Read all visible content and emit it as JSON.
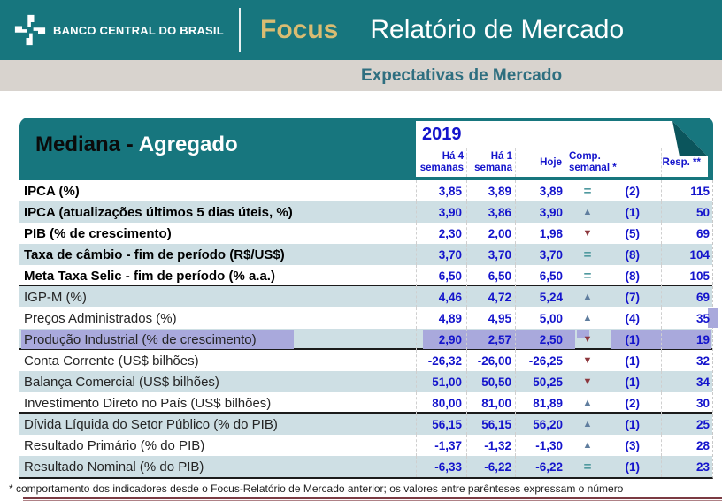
{
  "header": {
    "logo_text": "BANCO CENTRAL DO BRASIL",
    "brand": "Focus",
    "title": "Relatório de Mercado"
  },
  "subtitle": "Expectativas de Mercado",
  "table": {
    "title_black": "Mediana -",
    "title_white": "Agregado",
    "year": "2019",
    "columns": [
      "Há 4 semanas",
      "Há 1 semana",
      "Hoje",
      "Comp. semanal *",
      "Resp. **"
    ],
    "rows": [
      {
        "label": "IPCA (%)",
        "bold": true,
        "values": [
          "3,85",
          "3,89",
          "3,89"
        ],
        "dir": "eq",
        "comp": "(2)",
        "resp": "115"
      },
      {
        "label": "IPCA (atualizações últimos 5 dias úteis, %)",
        "bold": true,
        "values": [
          "3,90",
          "3,86",
          "3,90"
        ],
        "dir": "up",
        "comp": "(1)",
        "resp": "50"
      },
      {
        "label": "PIB (% de crescimento)",
        "bold": true,
        "values": [
          "2,30",
          "2,00",
          "1,98"
        ],
        "dir": "down",
        "comp": "(5)",
        "resp": "69"
      },
      {
        "label": "Taxa de câmbio - fim de período (R$/US$)",
        "bold": true,
        "values": [
          "3,70",
          "3,70",
          "3,70"
        ],
        "dir": "eq",
        "comp": "(8)",
        "resp": "104"
      },
      {
        "label": "Meta Taxa Selic - fim de período (% a.a.)",
        "bold": true,
        "values": [
          "6,50",
          "6,50",
          "6,50"
        ],
        "dir": "eq",
        "comp": "(8)",
        "resp": "105",
        "group_end": true
      },
      {
        "label": "IGP-M (%)",
        "values": [
          "4,46",
          "4,72",
          "5,24"
        ],
        "dir": "up",
        "comp": "(7)",
        "resp": "69"
      },
      {
        "label": "Preços Administrados (%)",
        "values": [
          "4,89",
          "4,95",
          "5,00"
        ],
        "dir": "up",
        "comp": "(4)",
        "resp": "35",
        "tail_selected": true
      },
      {
        "label": "Produção Industrial (% de crescimento)",
        "values": [
          "2,90",
          "2,57",
          "2,50"
        ],
        "dir": "down",
        "comp": "(1)",
        "resp": "19",
        "selected": true,
        "group_end": true
      },
      {
        "label": "Conta Corrente (US$ bilhões)",
        "values": [
          "-26,32",
          "-26,00",
          "-26,25"
        ],
        "dir": "down",
        "comp": "(1)",
        "resp": "32"
      },
      {
        "label": "Balança Comercial (US$ bilhões)",
        "values": [
          "51,00",
          "50,50",
          "50,25"
        ],
        "dir": "down",
        "comp": "(1)",
        "resp": "34"
      },
      {
        "label": "Investimento Direto no País (US$ bilhões)",
        "values": [
          "80,00",
          "81,00",
          "81,89"
        ],
        "dir": "up",
        "comp": "(2)",
        "resp": "30",
        "group_end": true
      },
      {
        "label": "Dívida Líquida do Setor Público (% do PIB)",
        "values": [
          "56,15",
          "56,15",
          "56,20"
        ],
        "dir": "up",
        "comp": "(1)",
        "resp": "25"
      },
      {
        "label": "Resultado Primário (% do PIB)",
        "values": [
          "-1,37",
          "-1,32",
          "-1,30"
        ],
        "dir": "up",
        "comp": "(3)",
        "resp": "28"
      },
      {
        "label": "Resultado Nominal (% do PIB)",
        "values": [
          "-6,33",
          "-6,22",
          "-6,22"
        ],
        "dir": "eq",
        "comp": "(1)",
        "resp": "23"
      }
    ]
  },
  "footnote": "* comportamento dos indicadores desde o Focus-Relatório de Mercado anterior; os valores entre parênteses expressam o número",
  "colors": {
    "teal": "#17767E",
    "teal_dark_fold": "#0B555C",
    "gold": "#D9BC72",
    "row_alt": "#CEDFE4",
    "value_blue": "#1414CC",
    "up_arrow": "#5F7D9E",
    "down_arrow": "#8C363C",
    "equal_sign": "#4F999E",
    "selection": "#A9A9DC",
    "bottom_rule": "#7B3B43"
  }
}
